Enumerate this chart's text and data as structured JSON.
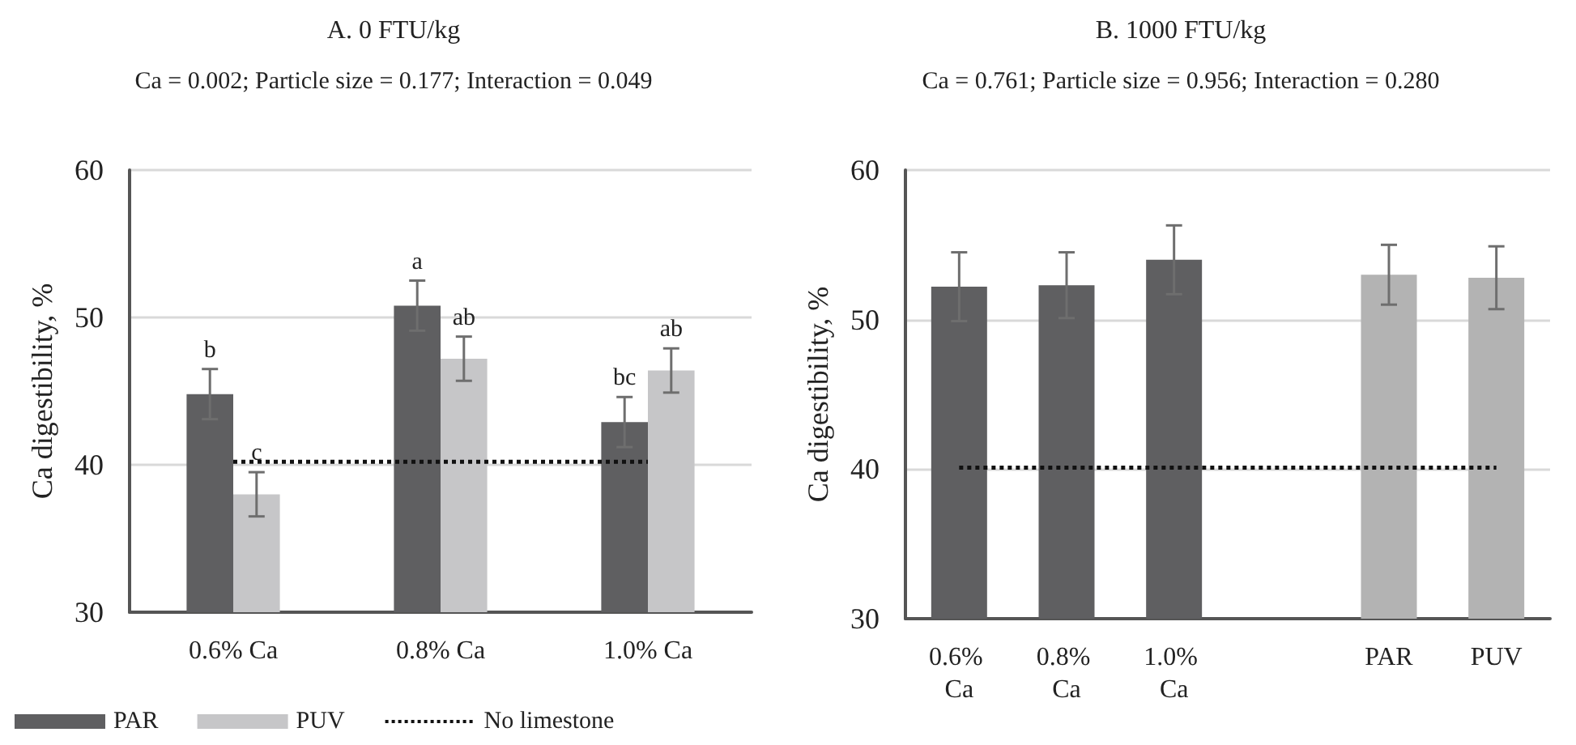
{
  "chart_data": [
    {
      "type": "bar",
      "title": "A. 0 FTU/kg",
      "subtitle": "Ca = 0.002; Particle size = 0.177; Interaction = 0.049",
      "ylabel": "Ca digestibility, %",
      "categories": [
        "0.6% Ca",
        "0.8% Ca",
        "1.0% Ca"
      ],
      "series": [
        {
          "name": "PAR",
          "color": "#5f5f61",
          "values": [
            44.8,
            50.8,
            42.9
          ],
          "errors": [
            1.7,
            1.7,
            1.7
          ],
          "value_labels": [
            "b",
            "a",
            "bc"
          ]
        },
        {
          "name": "PUV",
          "color": "#c6c6c8",
          "values": [
            38.0,
            47.2,
            46.4
          ],
          "errors": [
            1.5,
            1.5,
            1.5
          ],
          "value_labels": [
            "c",
            "ab",
            "ab"
          ]
        }
      ],
      "ref_lines": [
        {
          "axis": "y",
          "value": 40.2,
          "label": "No limestone",
          "color": "#111111",
          "line_style": "dotted"
        }
      ],
      "ylim": [
        30,
        60
      ],
      "yticks": [
        30,
        40,
        50,
        60
      ],
      "grid": "y",
      "legend": "bottom"
    },
    {
      "type": "bar",
      "title": "B. 1000 FTU/kg",
      "subtitle": "Ca = 0.761; Particle size = 0.956; Interaction = 0.280",
      "ylabel": "Ca digestibility, %",
      "categories": [
        "0.6% Ca",
        "0.8% Ca",
        "1.0% Ca",
        null,
        "PAR",
        "PUV"
      ],
      "values": [
        52.2,
        52.3,
        54.0,
        null,
        53.0,
        52.8
      ],
      "errors": [
        2.3,
        2.2,
        2.3,
        null,
        2.0,
        2.1
      ],
      "colors": [
        "#5f5f61",
        "#5f5f61",
        "#5f5f61",
        null,
        "#b3b3b3",
        "#b3b3b3"
      ],
      "ref_lines": [
        {
          "axis": "y",
          "value": 40.1,
          "color": "#111111",
          "line_style": "dotted"
        }
      ],
      "ylim": [
        30,
        60
      ],
      "yticks": [
        30,
        40,
        50,
        60
      ],
      "grid": "y",
      "legend": false
    }
  ]
}
